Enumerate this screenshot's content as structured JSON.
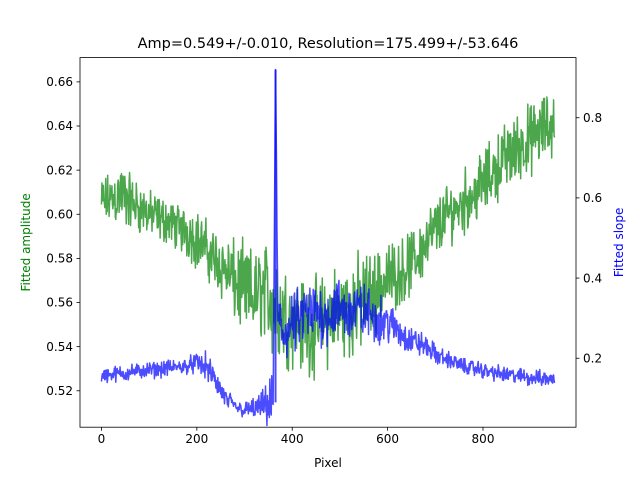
{
  "chart_data": {
    "type": "line",
    "title": "Amp=0.549+/-0.010, Resolution=175.499+/-53.646",
    "xlabel": "Pixel",
    "ylabel_left": "Fitted amplitude",
    "ylabel_right": "Fitted slope",
    "xlim": [
      -45,
      995
    ],
    "ylim_left": [
      0.5035,
      0.671
    ],
    "ylim_right": [
      0.028,
      0.95
    ],
    "xticks": [
      0,
      200,
      400,
      600,
      800
    ],
    "yticks_left": [
      0.52,
      0.54,
      0.56,
      0.58,
      0.6,
      0.62,
      0.64,
      0.66
    ],
    "yticks_right": [
      0.2,
      0.4,
      0.6,
      0.8
    ],
    "colors": {
      "left": "#008000",
      "right": "#0000ff"
    },
    "series": [
      {
        "axis": "left",
        "color": "#008000",
        "x": [
          0,
          20,
          40,
          60,
          80,
          100,
          120,
          140,
          160,
          180,
          200,
          220,
          240,
          260,
          280,
          300,
          320,
          340,
          360,
          380,
          400,
          420,
          440,
          460,
          480,
          500,
          520,
          540,
          560,
          580,
          600,
          620,
          640,
          660,
          680,
          700,
          720,
          740,
          760,
          780,
          800,
          820,
          840,
          860,
          880,
          900,
          920,
          940,
          950
        ],
        "y": [
          0.605,
          0.607,
          0.609,
          0.606,
          0.603,
          0.6,
          0.598,
          0.597,
          0.594,
          0.592,
          0.589,
          0.584,
          0.579,
          0.575,
          0.569,
          0.565,
          0.562,
          0.566,
          0.56,
          0.555,
          0.553,
          0.55,
          0.548,
          0.551,
          0.553,
          0.556,
          0.557,
          0.559,
          0.562,
          0.566,
          0.571,
          0.573,
          0.576,
          0.58,
          0.587,
          0.593,
          0.599,
          0.602,
          0.606,
          0.609,
          0.614,
          0.619,
          0.624,
          0.628,
          0.631,
          0.634,
          0.637,
          0.64,
          0.641
        ],
        "noise": [
          0.009,
          0.009,
          0.012,
          0.01,
          0.009,
          0.008,
          0.008,
          0.008,
          0.008,
          0.009,
          0.01,
          0.01,
          0.011,
          0.012,
          0.014,
          0.016,
          0.016,
          0.016,
          0.02,
          0.018,
          0.016,
          0.016,
          0.016,
          0.016,
          0.017,
          0.017,
          0.017,
          0.017,
          0.016,
          0.014,
          0.012,
          0.011,
          0.011,
          0.011,
          0.011,
          0.011,
          0.01,
          0.01,
          0.011,
          0.011,
          0.011,
          0.011,
          0.012,
          0.012,
          0.012,
          0.012,
          0.012,
          0.012,
          0.012
        ]
      },
      {
        "axis": "right",
        "color": "#0000ff",
        "x": [
          0,
          20,
          40,
          60,
          80,
          100,
          120,
          140,
          160,
          180,
          200,
          220,
          240,
          260,
          280,
          300,
          320,
          340,
          355,
          360,
          365,
          370,
          380,
          400,
          420,
          440,
          460,
          480,
          500,
          520,
          540,
          560,
          580,
          600,
          620,
          640,
          660,
          680,
          700,
          720,
          740,
          760,
          780,
          800,
          820,
          840,
          860,
          880,
          900,
          920,
          940,
          950
        ],
        "y": [
          0.155,
          0.16,
          0.162,
          0.165,
          0.168,
          0.17,
          0.172,
          0.175,
          0.178,
          0.182,
          0.188,
          0.18,
          0.14,
          0.1,
          0.08,
          0.07,
          0.075,
          0.08,
          0.085,
          0.09,
          0.92,
          0.3,
          0.26,
          0.28,
          0.3,
          0.31,
          0.31,
          0.315,
          0.32,
          0.32,
          0.32,
          0.31,
          0.3,
          0.29,
          0.27,
          0.25,
          0.24,
          0.23,
          0.21,
          0.2,
          0.19,
          0.18,
          0.175,
          0.17,
          0.165,
          0.16,
          0.157,
          0.155,
          0.152,
          0.15,
          0.148,
          0.147
        ],
        "noise": [
          0.015,
          0.015,
          0.015,
          0.015,
          0.015,
          0.015,
          0.015,
          0.015,
          0.015,
          0.015,
          0.02,
          0.025,
          0.025,
          0.02,
          0.015,
          0.015,
          0.02,
          0.03,
          0.05,
          0.05,
          0.0,
          0.06,
          0.06,
          0.06,
          0.06,
          0.06,
          0.06,
          0.06,
          0.06,
          0.06,
          0.055,
          0.05,
          0.045,
          0.04,
          0.035,
          0.03,
          0.025,
          0.02,
          0.02,
          0.015,
          0.015,
          0.015,
          0.015,
          0.015,
          0.015,
          0.015,
          0.015,
          0.015,
          0.015,
          0.015,
          0.015,
          0.015
        ]
      }
    ]
  }
}
